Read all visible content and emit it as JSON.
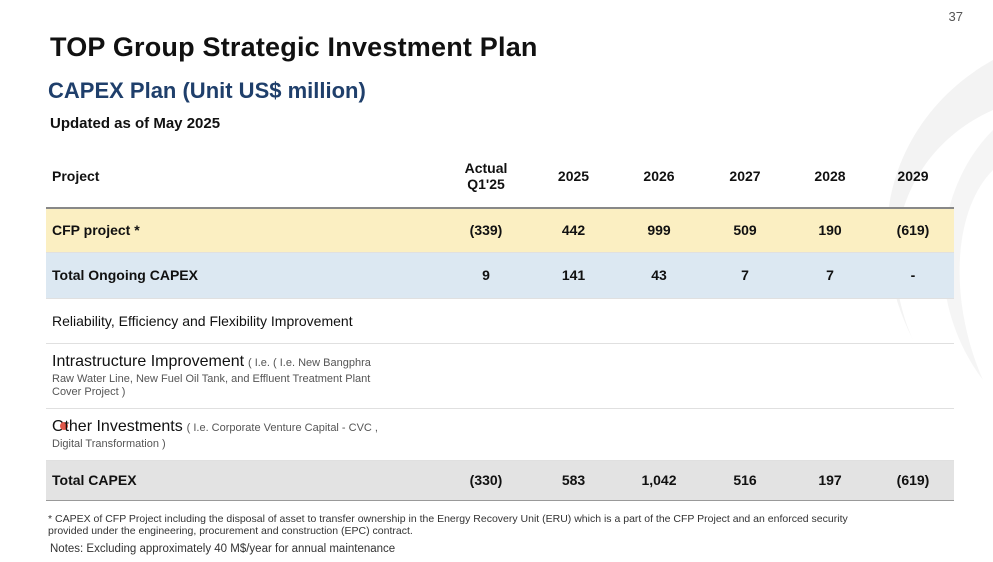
{
  "page_number": "37",
  "title": "TOP Group Strategic Investment Plan",
  "subtitle": "CAPEX Plan (Unit US$ million)",
  "updated": "Updated as of  May 2025",
  "table": {
    "headers": {
      "project": "Project",
      "actual_line1": "Actual",
      "actual_line2": "Q1'25",
      "y2025": "2025",
      "y2026": "2026",
      "y2027": "2027",
      "y2028": "2028",
      "y2029": "2029"
    },
    "rows": [
      {
        "name": "CFP project *",
        "values": [
          "(339)",
          "442",
          "999",
          "509",
          "190",
          "(619)"
        ]
      },
      {
        "name": "Total Ongoing CAPEX",
        "values": [
          "9",
          "141",
          "43",
          "7",
          "7",
          "-"
        ]
      },
      {
        "name": "Reliability, Efficiency and Flexibility Improvement",
        "values": [
          "",
          "",
          "",
          "",
          "",
          ""
        ]
      },
      {
        "name": "Intrastructure Improvement",
        "note": "( I.e. ( I.e. New Bangphra",
        "note2": "Raw Water Line, New Fuel Oil Tank, and Effluent Treatment Plant",
        "note3": "Cover Project )",
        "values": [
          "",
          "",
          "",
          "",
          "",
          ""
        ]
      },
      {
        "name_a": "O",
        "name_b": "ther Investments",
        "note": "( I.e. Corporate Venture Capital  - CVC ,",
        "note2": "Digital Transformation )",
        "values": [
          "",
          "",
          "",
          "",
          "",
          ""
        ]
      },
      {
        "name": "Total CAPEX",
        "values": [
          "(330)",
          "583",
          "1,042",
          "516",
          "197",
          "(619)"
        ]
      }
    ]
  },
  "footnote": "* CAPEX of CFP Project including the disposal of asset to transfer ownership in the Energy Recovery Unit (ERU) which is a part of the CFP Project and an enforced security provided under the engineering, procurement and construction (EPC) contract.",
  "notes": "Notes: Excluding approximately 40 M$/year for annual maintenance"
}
